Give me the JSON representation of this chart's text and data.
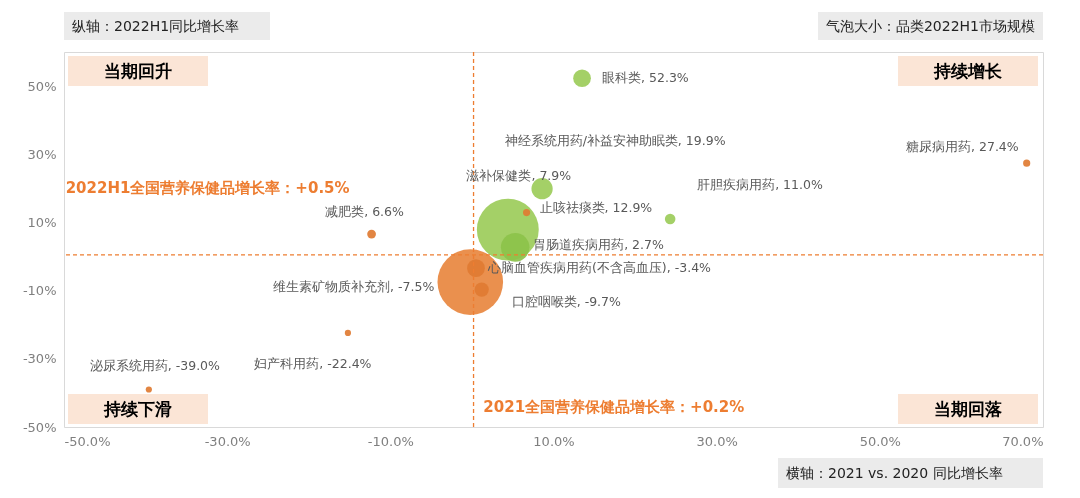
{
  "chart_data": {
    "type": "bubble",
    "xlabel": "横轴：2021 vs. 2020 同比增长率",
    "ylabel": "纵轴：2022H1同比增长率",
    "x": [
      -0.2,
      4.4,
      5.3,
      8.6,
      13.5,
      0.5,
      1.2,
      24.3,
      -12.3,
      6.7,
      -15.2,
      68.0,
      -39.6
    ],
    "values": [
      -7.5,
      7.9,
      2.7,
      19.9,
      52.3,
      -3.4,
      -9.7,
      11.0,
      6.6,
      12.9,
      -22.4,
      27.4,
      -39.0
    ],
    "value_labels": [
      "维生素矿物质补充剂, -7.5%",
      "滋补保健类, 7.9%",
      "胃肠道疾病用药, 2.7%",
      "神经系统用药/补益安神助眠类, 19.9%",
      "眼科类, 52.3%",
      "心脑血管疾病用药(不含高血压), -3.4%",
      "口腔咽喉类, -9.7%",
      "肝胆疾病用药, 11.0%",
      "减肥类, 6.6%",
      "止咳祛痰类, 12.9%",
      "妇产科用药, -22.4%",
      "糖尿病用药, 27.4%",
      "泌尿系统用药, -39.0%"
    ],
    "sizes": [
      1,
      0.89,
      0.19,
      0.105,
      0.073,
      0.073,
      0.047,
      0.026,
      0.018,
      0.012,
      0.009,
      0.012,
      0.009
    ],
    "colors": [
      "#e8873f",
      "#9ccc5a",
      "#8cc24a",
      "#9ccc5a",
      "#9ccc5a",
      "#e07b32",
      "#e07b32",
      "#9ccc5a",
      "#e07b32",
      "#e07b32",
      "#e07b32",
      "#e07b32",
      "#e07b32"
    ],
    "xlim": [
      -50,
      70
    ],
    "ylim": [
      -50,
      60
    ],
    "xticks": [
      {
        "value": -50,
        "label": "-50.0%"
      },
      {
        "value": -30,
        "label": "-30.0%"
      },
      {
        "value": -10,
        "label": "-10.0%"
      },
      {
        "value": 10,
        "label": "10.0%"
      },
      {
        "value": 30,
        "label": "30.0%"
      },
      {
        "value": 50,
        "label": "50.0%"
      },
      {
        "value": 70,
        "label": "70.0%"
      }
    ],
    "yticks": [
      {
        "value": -50,
        "label": "-50%"
      },
      {
        "value": -30,
        "label": "-30%"
      },
      {
        "value": -10,
        "label": "-10%"
      },
      {
        "value": 10,
        "label": "10%"
      },
      {
        "value": 30,
        "label": "30%"
      },
      {
        "value": 50,
        "label": "50%"
      }
    ],
    "ref_lines": [
      {
        "axis": "y",
        "value": 0.5,
        "label": "2022H1全国营养保健品增长率：+0.5%",
        "color": "#ed7d31",
        "line_style": "dashed"
      },
      {
        "axis": "x",
        "value": 0.2,
        "label": "2021全国营养保健品增长率：+0.2%",
        "color": "#ed7d31",
        "line_style": "dashed"
      }
    ],
    "annotations": [
      "当期回升",
      "持续增长",
      "持续下滑",
      "当期回落",
      "气泡大小：品类2022H1市场规模"
    ],
    "grid": false
  }
}
